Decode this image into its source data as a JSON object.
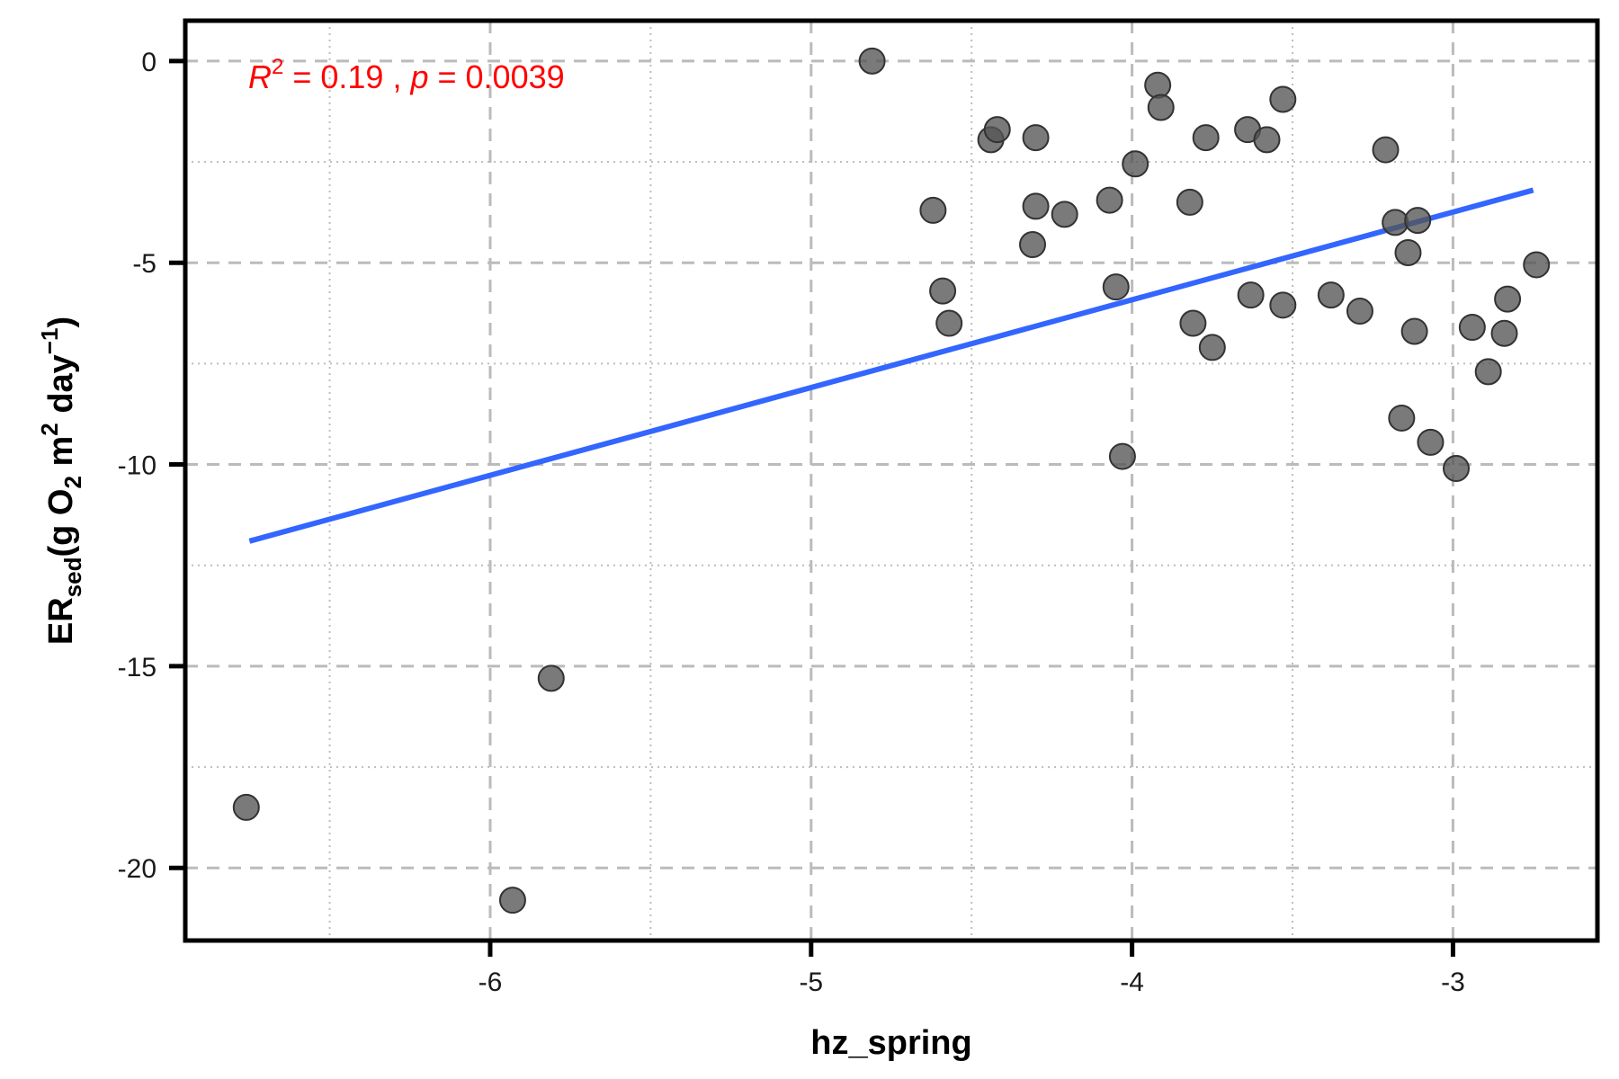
{
  "chart_data": {
    "type": "scatter",
    "xlabel": "hz_spring",
    "ylabel": {
      "main": "ER",
      "subscript": "sed",
      "units_prefix": "(g O",
      "o_subscript": "2",
      "units_mid": " m",
      "m_superscript": "2",
      "units_end": " day",
      "day_superscript": "−1",
      "close": ")"
    },
    "xlim": [
      -6.95,
      -2.55
    ],
    "ylim": [
      -21.8,
      1.0
    ],
    "x_ticks": [
      -6,
      -5,
      -4,
      -3
    ],
    "x_tick_labels": [
      "-6",
      "-5",
      "-4",
      "-3"
    ],
    "y_ticks": [
      0,
      -5,
      -10,
      -15,
      -20
    ],
    "y_tick_labels": [
      "0",
      "-5",
      "-10",
      "-15",
      "-20"
    ],
    "x_minor_grid": [
      -6.5,
      -5.5,
      -4.5,
      -3.5
    ],
    "y_minor_grid": [
      -2.5,
      -7.5,
      -12.5,
      -17.5
    ],
    "grid": true,
    "annotation": {
      "r_label": "R",
      "r_sup": "2",
      "r_value": " = 0.19 , ",
      "p_label": "p",
      "p_value": " = 0.0039",
      "color": "#ff0000"
    },
    "point_color": "#555555",
    "line_color": "#3366ff",
    "fit_line": {
      "x": [
        -6.75,
        -2.75
      ],
      "y": [
        -11.9,
        -3.2
      ]
    },
    "points": [
      {
        "x": -6.76,
        "y": -18.5
      },
      {
        "x": -5.93,
        "y": -20.8
      },
      {
        "x": -5.81,
        "y": -15.3
      },
      {
        "x": -4.81,
        "y": 0.0
      },
      {
        "x": -4.62,
        "y": -3.7
      },
      {
        "x": -4.59,
        "y": -5.7
      },
      {
        "x": -4.57,
        "y": -6.5
      },
      {
        "x": -4.44,
        "y": -1.95
      },
      {
        "x": -4.42,
        "y": -1.7
      },
      {
        "x": -4.31,
        "y": -4.55
      },
      {
        "x": -4.3,
        "y": -3.6
      },
      {
        "x": -4.3,
        "y": -1.9
      },
      {
        "x": -4.21,
        "y": -3.8
      },
      {
        "x": -4.07,
        "y": -3.45
      },
      {
        "x": -4.05,
        "y": -5.6
      },
      {
        "x": -4.03,
        "y": -9.8
      },
      {
        "x": -3.99,
        "y": -2.55
      },
      {
        "x": -3.92,
        "y": -0.6
      },
      {
        "x": -3.91,
        "y": -1.15
      },
      {
        "x": -3.82,
        "y": -3.5
      },
      {
        "x": -3.81,
        "y": -6.5
      },
      {
        "x": -3.77,
        "y": -1.9
      },
      {
        "x": -3.75,
        "y": -7.1
      },
      {
        "x": -3.64,
        "y": -1.7
      },
      {
        "x": -3.63,
        "y": -5.8
      },
      {
        "x": -3.58,
        "y": -1.95
      },
      {
        "x": -3.53,
        "y": -0.95
      },
      {
        "x": -3.53,
        "y": -6.05
      },
      {
        "x": -3.38,
        "y": -5.8
      },
      {
        "x": -3.29,
        "y": -6.2
      },
      {
        "x": -3.21,
        "y": -2.2
      },
      {
        "x": -3.18,
        "y": -4.0
      },
      {
        "x": -3.16,
        "y": -8.85
      },
      {
        "x": -3.14,
        "y": -4.75
      },
      {
        "x": -3.12,
        "y": -6.7
      },
      {
        "x": -3.11,
        "y": -3.95
      },
      {
        "x": -3.07,
        "y": -9.45
      },
      {
        "x": -2.99,
        "y": -10.1
      },
      {
        "x": -2.94,
        "y": -6.6
      },
      {
        "x": -2.89,
        "y": -7.7
      },
      {
        "x": -2.84,
        "y": -6.75
      },
      {
        "x": -2.83,
        "y": -5.9
      },
      {
        "x": -2.74,
        "y": -5.05
      }
    ]
  }
}
